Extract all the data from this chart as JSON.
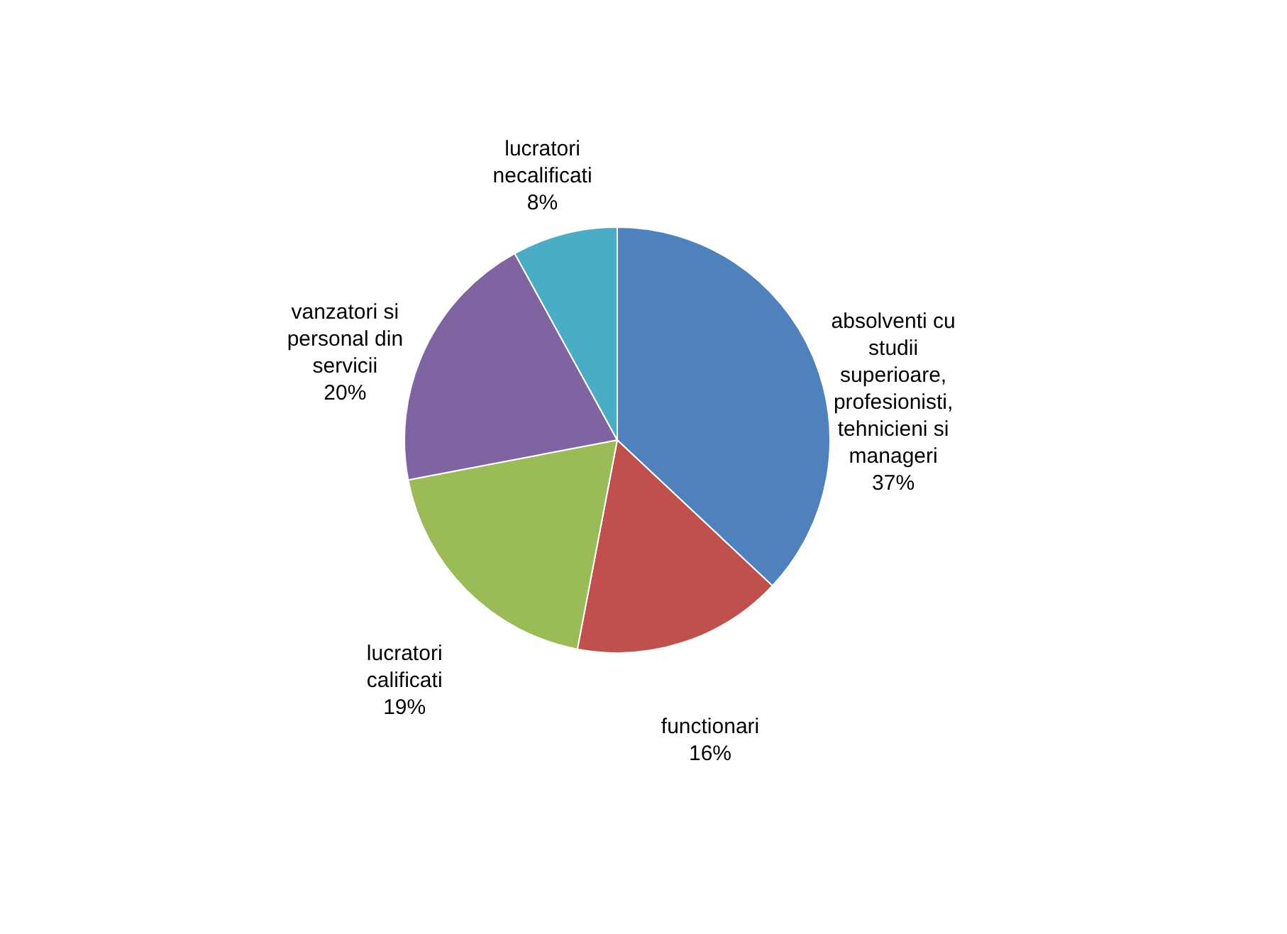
{
  "chart_data": {
    "type": "pie",
    "categories": [
      "absolventi cu studii superioare, profesionisti, tehnicieni si manageri",
      "functionari",
      "lucratori calificati",
      "vanzatori si personal din servicii",
      "lucratori necalificati"
    ],
    "values": [
      37,
      16,
      19,
      20,
      8
    ],
    "value_labels": [
      "37%",
      "16%",
      "19%",
      "20%",
      "8%"
    ],
    "colors": [
      "#4f81bd",
      "#c0504d",
      "#9bbb59",
      "#8064a2",
      "#4bacc6"
    ],
    "legend": false
  }
}
